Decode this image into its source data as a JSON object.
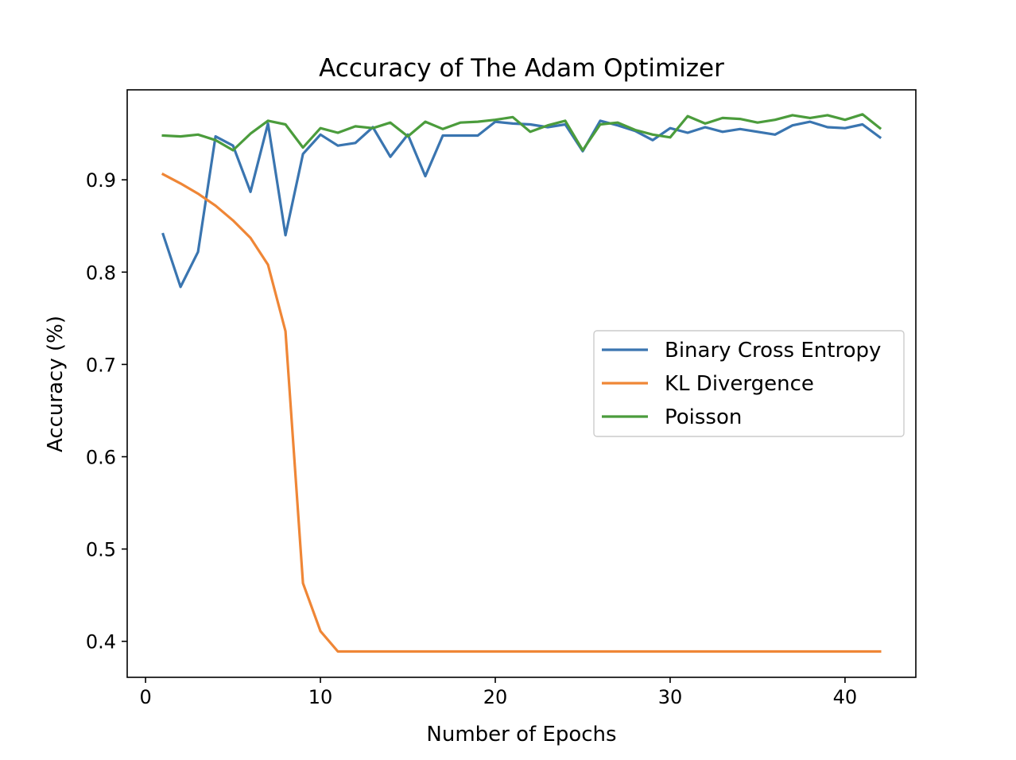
{
  "chart_data": {
    "type": "line",
    "title": "Accuracy of The Adam Optimizer",
    "xlabel": "Number of Epochs",
    "ylabel": "Accuracy (%)",
    "xlim": [
      -1.05,
      44.05
    ],
    "ylim": [
      0.361,
      0.9975
    ],
    "xticks": [
      0,
      10,
      20,
      30,
      40
    ],
    "yticks": [
      0.4,
      0.5,
      0.6,
      0.7,
      0.8,
      0.9
    ],
    "xtick_labels": [
      "0",
      "10",
      "20",
      "30",
      "40"
    ],
    "ytick_labels": [
      "0.4",
      "0.5",
      "0.6",
      "0.7",
      "0.8",
      "0.9"
    ],
    "grid": false,
    "legend_position": "center-right",
    "x": [
      1,
      2,
      3,
      4,
      5,
      6,
      7,
      8,
      9,
      10,
      11,
      12,
      13,
      14,
      15,
      16,
      17,
      18,
      19,
      20,
      21,
      22,
      23,
      24,
      25,
      26,
      27,
      28,
      29,
      30,
      31,
      32,
      33,
      34,
      35,
      36,
      37,
      38,
      39,
      40,
      41,
      42
    ],
    "series": [
      {
        "name": "Binary Cross Entropy",
        "color": "#3a75b0",
        "values": [
          0.841,
          0.784,
          0.822,
          0.947,
          0.937,
          0.887,
          0.961,
          0.84,
          0.928,
          0.949,
          0.937,
          0.94,
          0.957,
          0.925,
          0.949,
          0.904,
          0.948,
          0.948,
          0.948,
          0.963,
          0.961,
          0.96,
          0.957,
          0.96,
          0.931,
          0.964,
          0.959,
          0.953,
          0.943,
          0.956,
          0.951,
          0.957,
          0.952,
          0.955,
          0.952,
          0.949,
          0.959,
          0.963,
          0.957,
          0.956,
          0.96,
          0.946
        ]
      },
      {
        "name": "KL Divergence",
        "color": "#ef8636",
        "values": [
          0.906,
          0.896,
          0.885,
          0.872,
          0.856,
          0.837,
          0.808,
          0.736,
          0.463,
          0.411,
          0.389,
          0.389,
          0.389,
          0.389,
          0.389,
          0.389,
          0.389,
          0.389,
          0.389,
          0.389,
          0.389,
          0.389,
          0.389,
          0.389,
          0.389,
          0.389,
          0.389,
          0.389,
          0.389,
          0.389,
          0.389,
          0.389,
          0.389,
          0.389,
          0.389,
          0.389,
          0.389,
          0.389,
          0.389,
          0.389,
          0.389,
          0.389
        ]
      },
      {
        "name": "Poisson",
        "color": "#4b9c3c",
        "values": [
          0.948,
          0.947,
          0.949,
          0.943,
          0.932,
          0.95,
          0.964,
          0.96,
          0.935,
          0.956,
          0.951,
          0.958,
          0.956,
          0.962,
          0.947,
          0.963,
          0.955,
          0.962,
          0.963,
          0.965,
          0.968,
          0.952,
          0.959,
          0.964,
          0.932,
          0.96,
          0.962,
          0.954,
          0.949,
          0.946,
          0.969,
          0.961,
          0.967,
          0.966,
          0.962,
          0.965,
          0.97,
          0.967,
          0.97,
          0.965,
          0.971,
          0.956
        ]
      }
    ]
  }
}
